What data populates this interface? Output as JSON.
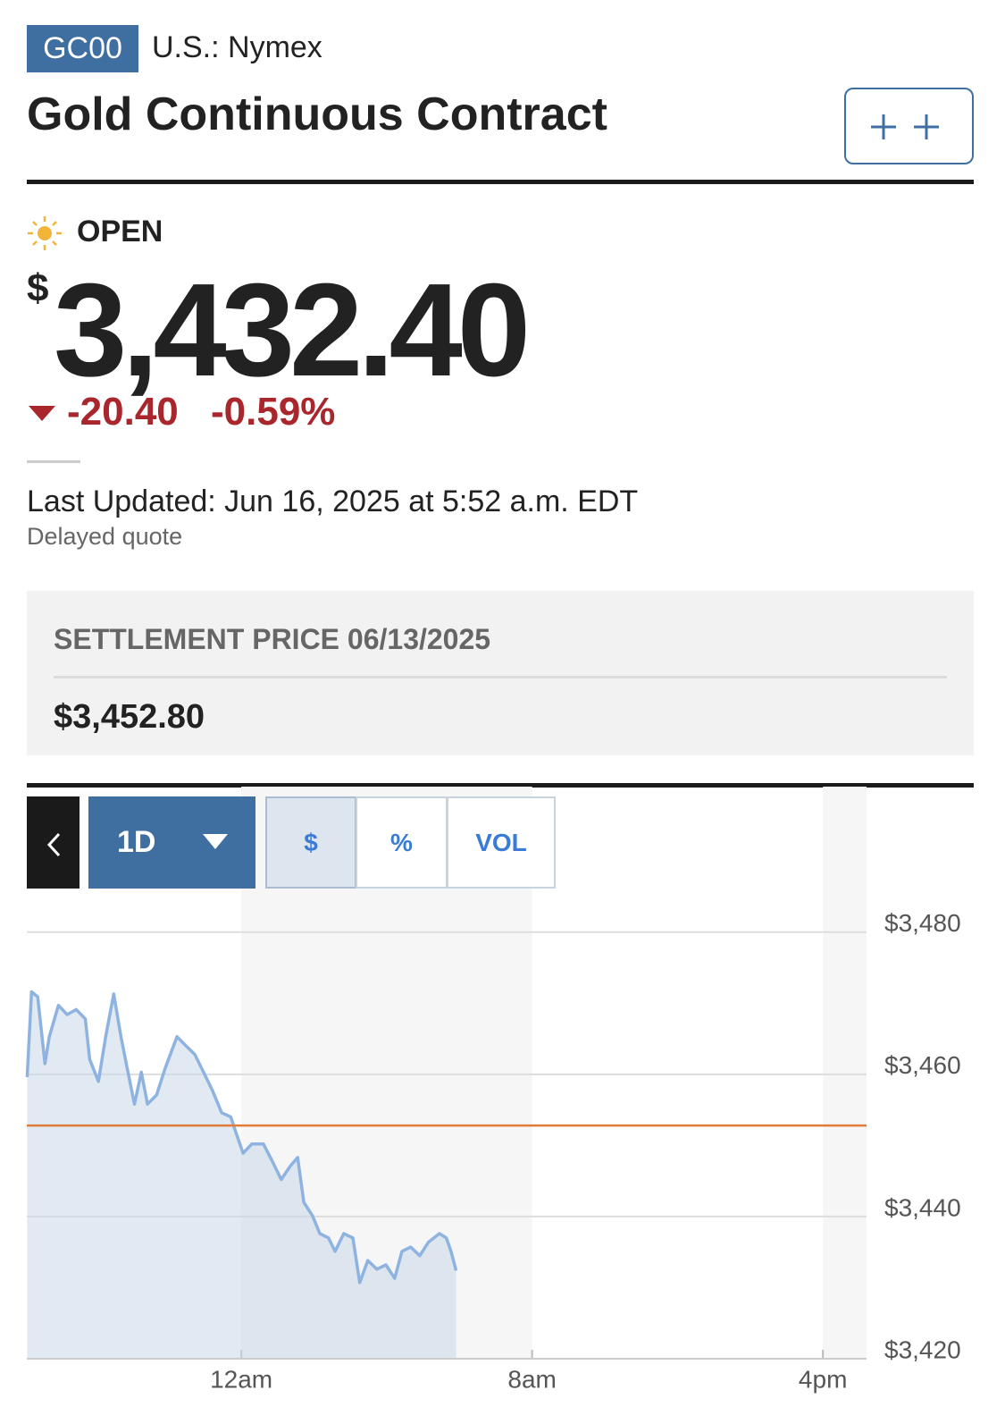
{
  "header": {
    "symbol": "GC00",
    "exchange": "U.S.: Nymex",
    "title": "Gold Continuous Contract"
  },
  "quote": {
    "status": "OPEN",
    "currency": "$",
    "price": "3,432.40",
    "change": "-20.40",
    "change_percent": "-0.59%",
    "last_updated": "Last Updated: Jun 16, 2025 at 5:52 a.m. EDT",
    "delay_note": "Delayed quote"
  },
  "settlement": {
    "label": "SETTLEMENT PRICE 06/13/2025",
    "value": "$3,452.80"
  },
  "chart_controls": {
    "range": "1D",
    "modes": [
      "$",
      "%",
      "VOL"
    ]
  },
  "chart_data": {
    "type": "line",
    "color": "#8fb3e0",
    "reference_line": 3452.8,
    "reference_color": "#e07b39",
    "grid": true,
    "x": [
      -5.89,
      -5.77,
      -5.6,
      -5.4,
      -5.28,
      -5.03,
      -4.79,
      -4.54,
      -4.29,
      -4.17,
      -3.93,
      -3.73,
      -3.51,
      -3.31,
      -3.14,
      -2.94,
      -2.75,
      -2.58,
      -2.33,
      -2.09,
      -1.77,
      -1.52,
      -1.28,
      -1.04,
      -0.79,
      -0.54,
      -0.29,
      -0.12,
      0.05,
      0.29,
      0.61,
      0.86,
      1.1,
      1.35,
      1.55,
      1.72,
      1.96,
      2.16,
      2.4,
      2.58,
      2.82,
      3.07,
      3.26,
      3.48,
      3.73,
      3.98,
      4.22,
      4.42,
      4.66,
      4.91,
      5.15,
      5.45,
      5.64,
      5.77,
      5.91
    ],
    "values": [
      3459.6,
      3471.6,
      3470.9,
      3461.5,
      3465.3,
      3469.7,
      3468.4,
      3469.1,
      3467.8,
      3462.1,
      3459.0,
      3465.3,
      3471.3,
      3465.3,
      3460.9,
      3455.8,
      3460.3,
      3455.8,
      3457.1,
      3460.9,
      3465.3,
      3464.0,
      3462.8,
      3460.3,
      3457.7,
      3454.6,
      3454.0,
      3451.4,
      3448.9,
      3450.2,
      3450.2,
      3447.7,
      3445.2,
      3447.1,
      3448.3,
      3442.0,
      3440.1,
      3437.6,
      3437.0,
      3435.1,
      3437.6,
      3437.0,
      3430.7,
      3433.8,
      3432.6,
      3433.2,
      3431.3,
      3435.1,
      3435.7,
      3434.5,
      3436.4,
      3437.6,
      3437.0,
      3435.1,
      3432.4
    ],
    "xlim": [
      -5.9,
      17.2
    ],
    "xticks": [
      {
        "value": 0,
        "label": "12am"
      },
      {
        "value": 8,
        "label": "8am"
      },
      {
        "value": 16,
        "label": "4pm"
      }
    ],
    "ylim": [
      3420,
      3486
    ],
    "yticks": [
      {
        "value": 3420,
        "label": "$3,420"
      },
      {
        "value": 3440,
        "label": "$3,440"
      },
      {
        "value": 3460,
        "label": "$3,460"
      },
      {
        "value": 3480,
        "label": "$3,480"
      }
    ]
  }
}
